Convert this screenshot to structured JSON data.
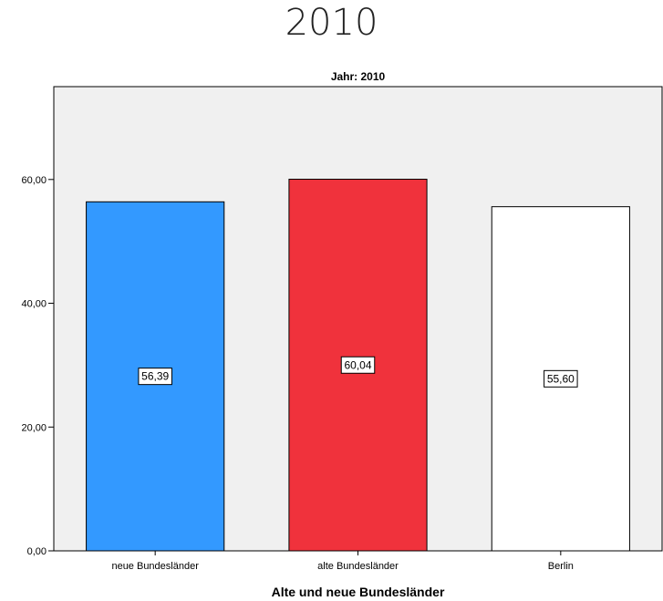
{
  "page_title": "2010",
  "chart_data": {
    "type": "bar",
    "panel_title": "Jahr: 2010",
    "xlabel": "Alte und neue Bundesländer",
    "ylabel": "",
    "categories": [
      "neue Bundesländer",
      "alte Bundesländer",
      "Berlin"
    ],
    "values": [
      56.39,
      60.04,
      55.6
    ],
    "value_labels": [
      "56,39",
      "60,04",
      "55,60"
    ],
    "bar_colors": [
      "#3399ff",
      "#f0323c",
      "#ffffff"
    ],
    "ylim": [
      0,
      75
    ],
    "yticks": [
      0,
      20,
      40,
      60
    ],
    "ytick_labels": [
      "0,00",
      "20,00",
      "40,00",
      "60,00"
    ],
    "background_color": "#f0f0f0",
    "grid": false,
    "legend": "none"
  }
}
